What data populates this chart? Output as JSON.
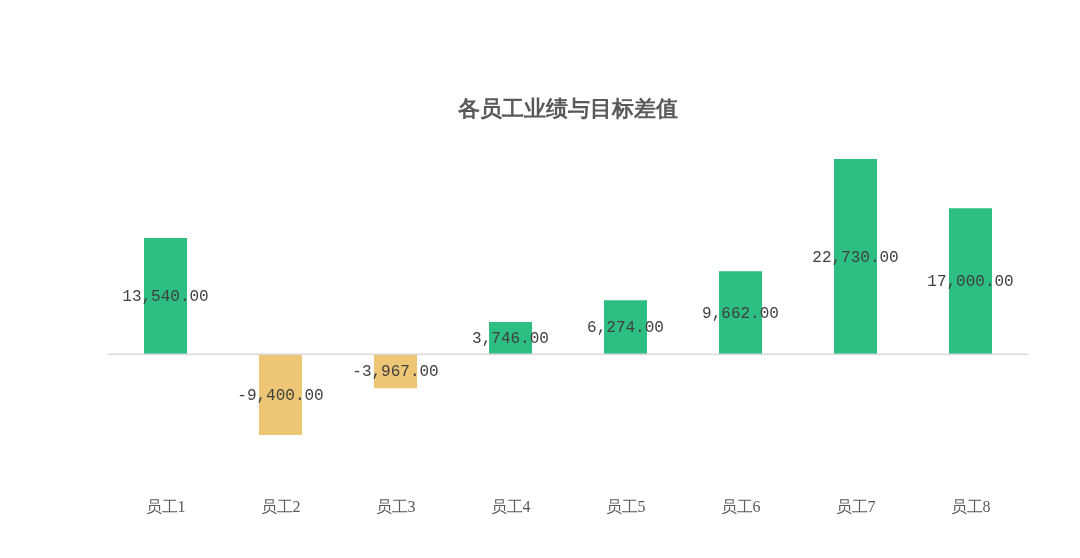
{
  "chart_data": {
    "type": "bar",
    "title": "各员工业绩与目标差值",
    "categories": [
      "员工1",
      "员工2",
      "员工3",
      "员工4",
      "员工5",
      "员工6",
      "员工7",
      "员工8"
    ],
    "values": [
      13540,
      -9400,
      -3967,
      3746,
      6274,
      9662,
      22730,
      17000
    ],
    "colors": [
      "#2dbe81",
      "#ecc675",
      "#ecc675",
      "#2dbe81",
      "#2dbe81",
      "#2dbe81",
      "#2dbe81",
      "#2dbe81"
    ],
    "value_labels": [
      "13,540.00",
      "-9,400.00",
      "-3,967.00",
      "3,746.00",
      "6,274.00",
      "9,662.00",
      "22,730.00",
      "17,000.00"
    ],
    "tick_labels": "x"
  }
}
